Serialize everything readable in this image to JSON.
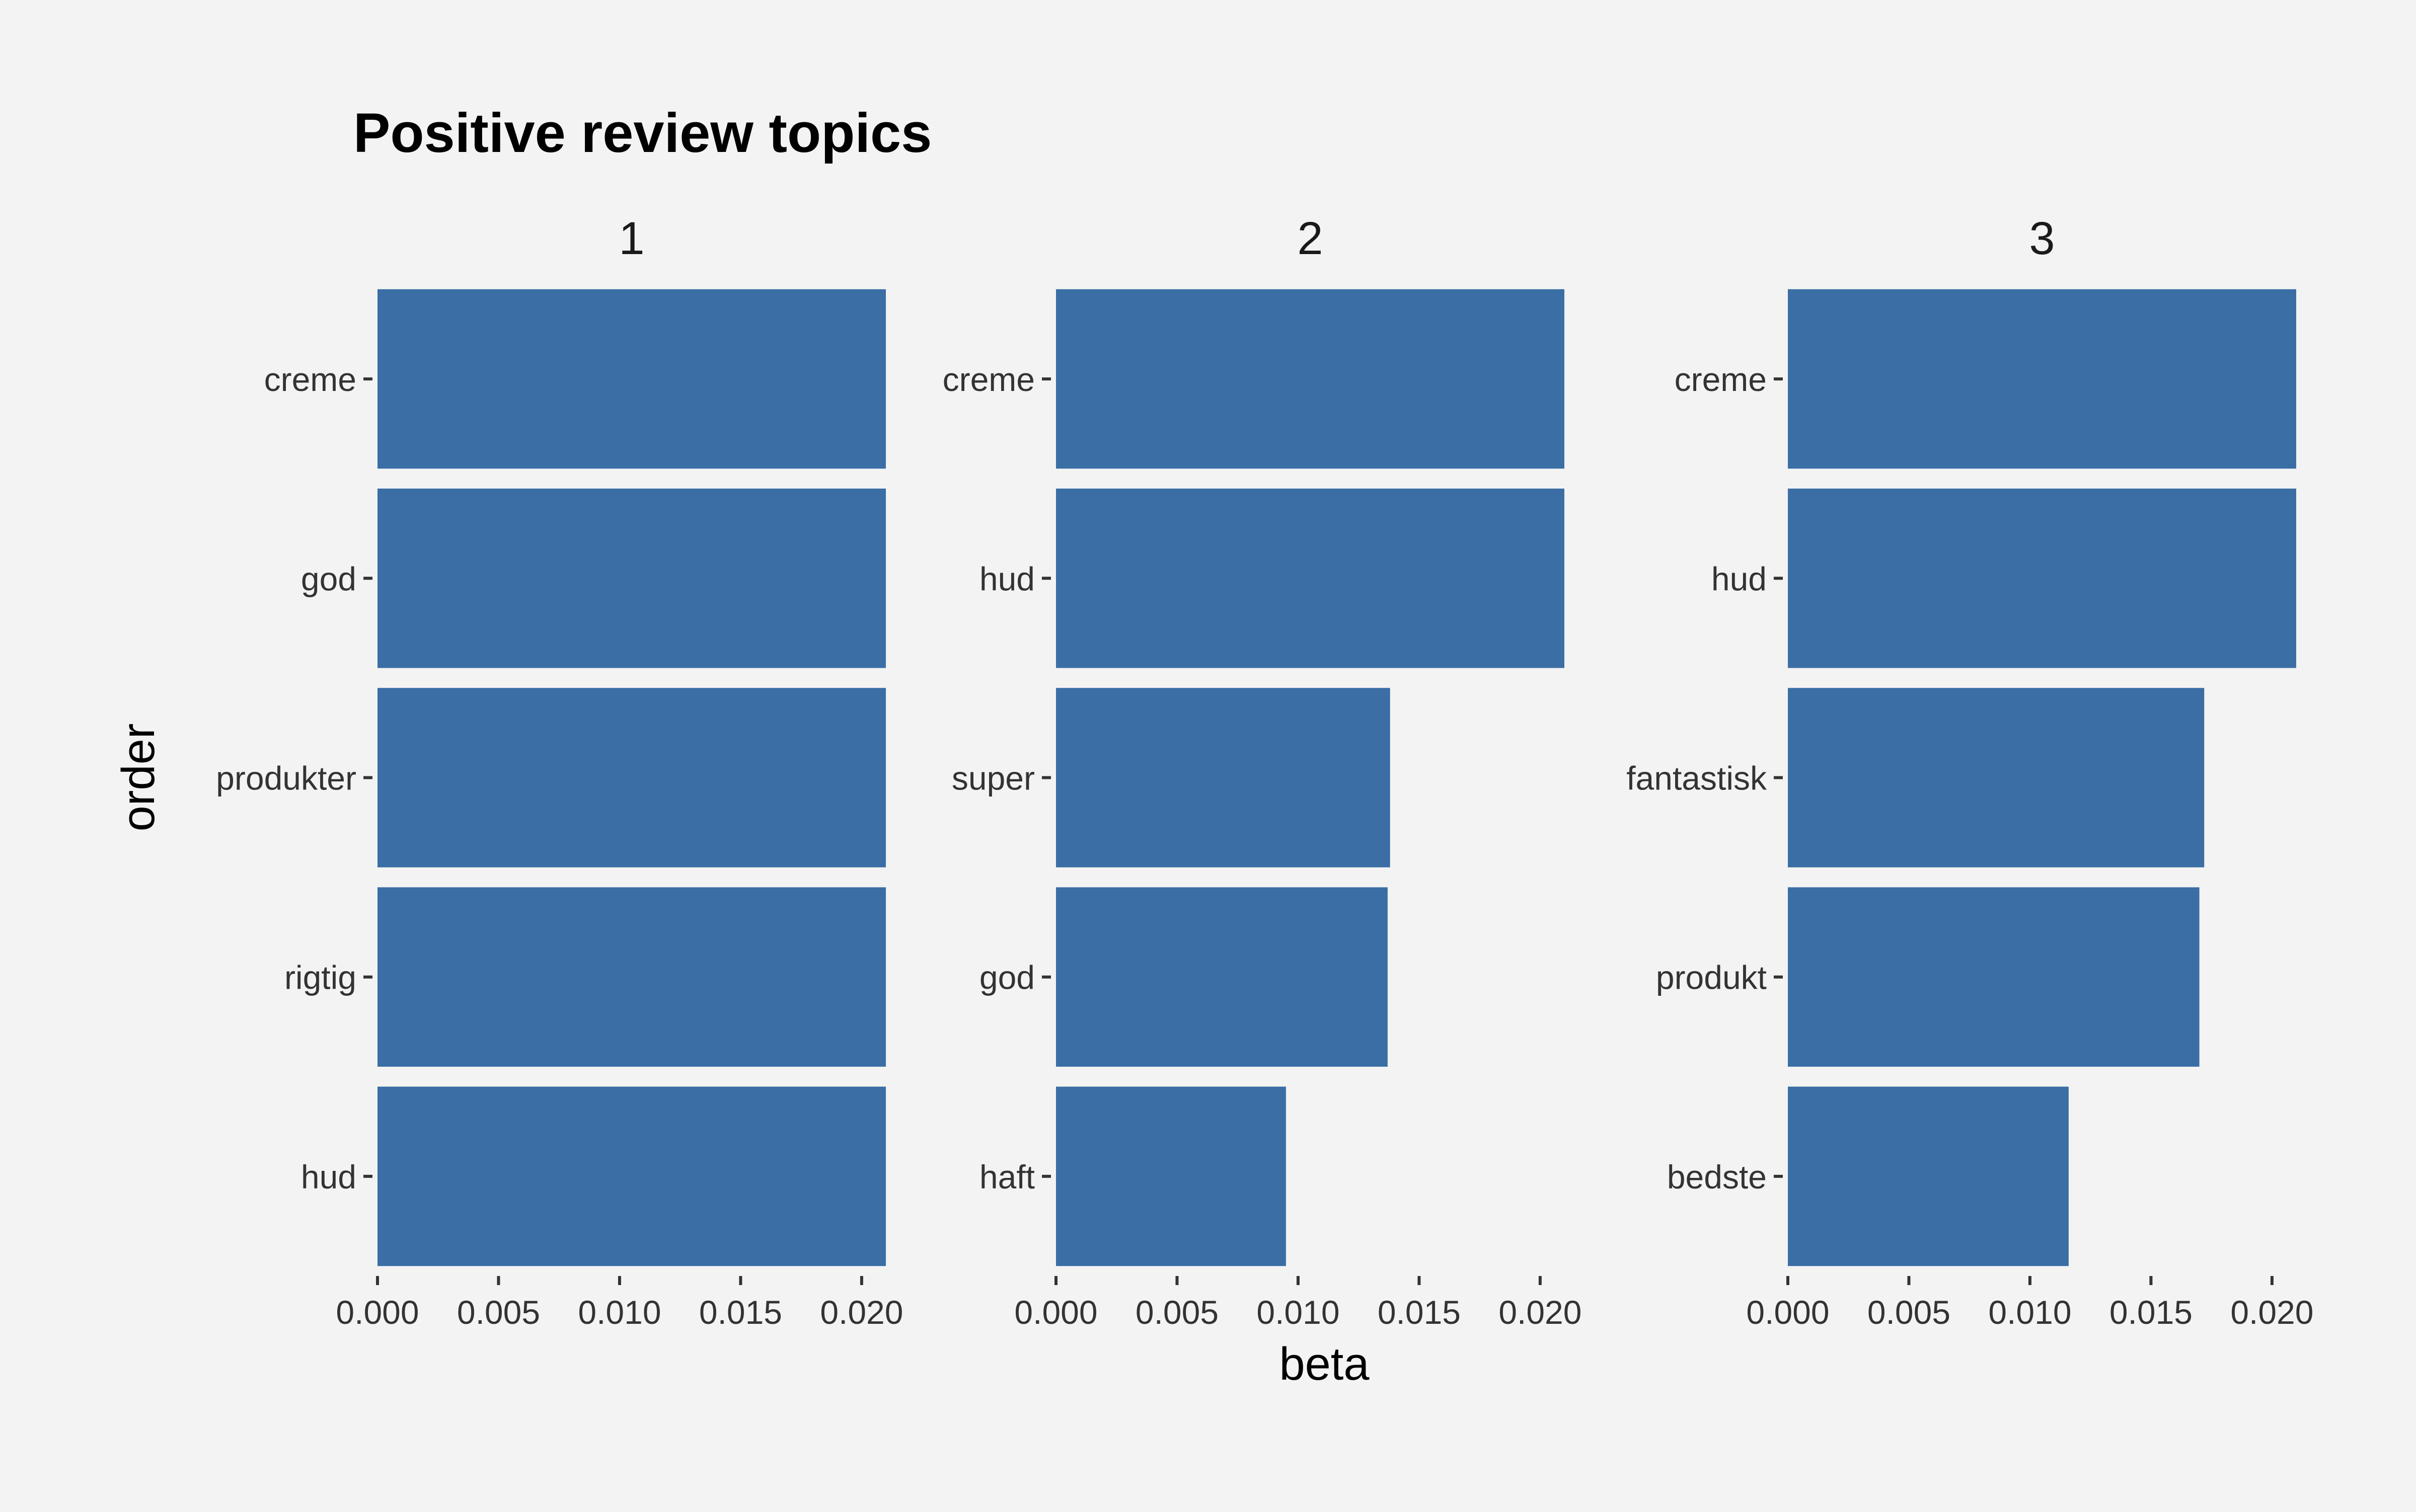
{
  "chart_data": {
    "type": "bar",
    "orientation": "horizontal",
    "title": "Positive review topics",
    "xlabel": "beta",
    "ylabel": "order",
    "xlim": [
      0,
      0.021
    ],
    "x_ticks": [
      "0.000",
      "0.005",
      "0.010",
      "0.015",
      "0.020"
    ],
    "tick_values": [
      0,
      0.005,
      0.01,
      0.015,
      0.02
    ],
    "grid": false,
    "legend": "none",
    "bar_color": "#3a6ea5",
    "background_color": "#f3f3f3",
    "facets": [
      {
        "label": "1",
        "categories": [
          "creme",
          "god",
          "produkter",
          "rigtig",
          "hud"
        ],
        "values": [
          0.021,
          0.021,
          0.021,
          0.021,
          0.021
        ]
      },
      {
        "label": "2",
        "categories": [
          "creme",
          "hud",
          "super",
          "god",
          "haft"
        ],
        "values": [
          0.021,
          0.021,
          0.0138,
          0.0137,
          0.0095
        ]
      },
      {
        "label": "3",
        "categories": [
          "creme",
          "hud",
          "fantastisk",
          "produkt",
          "bedste"
        ],
        "values": [
          0.021,
          0.021,
          0.0172,
          0.017,
          0.0116
        ]
      }
    ]
  }
}
